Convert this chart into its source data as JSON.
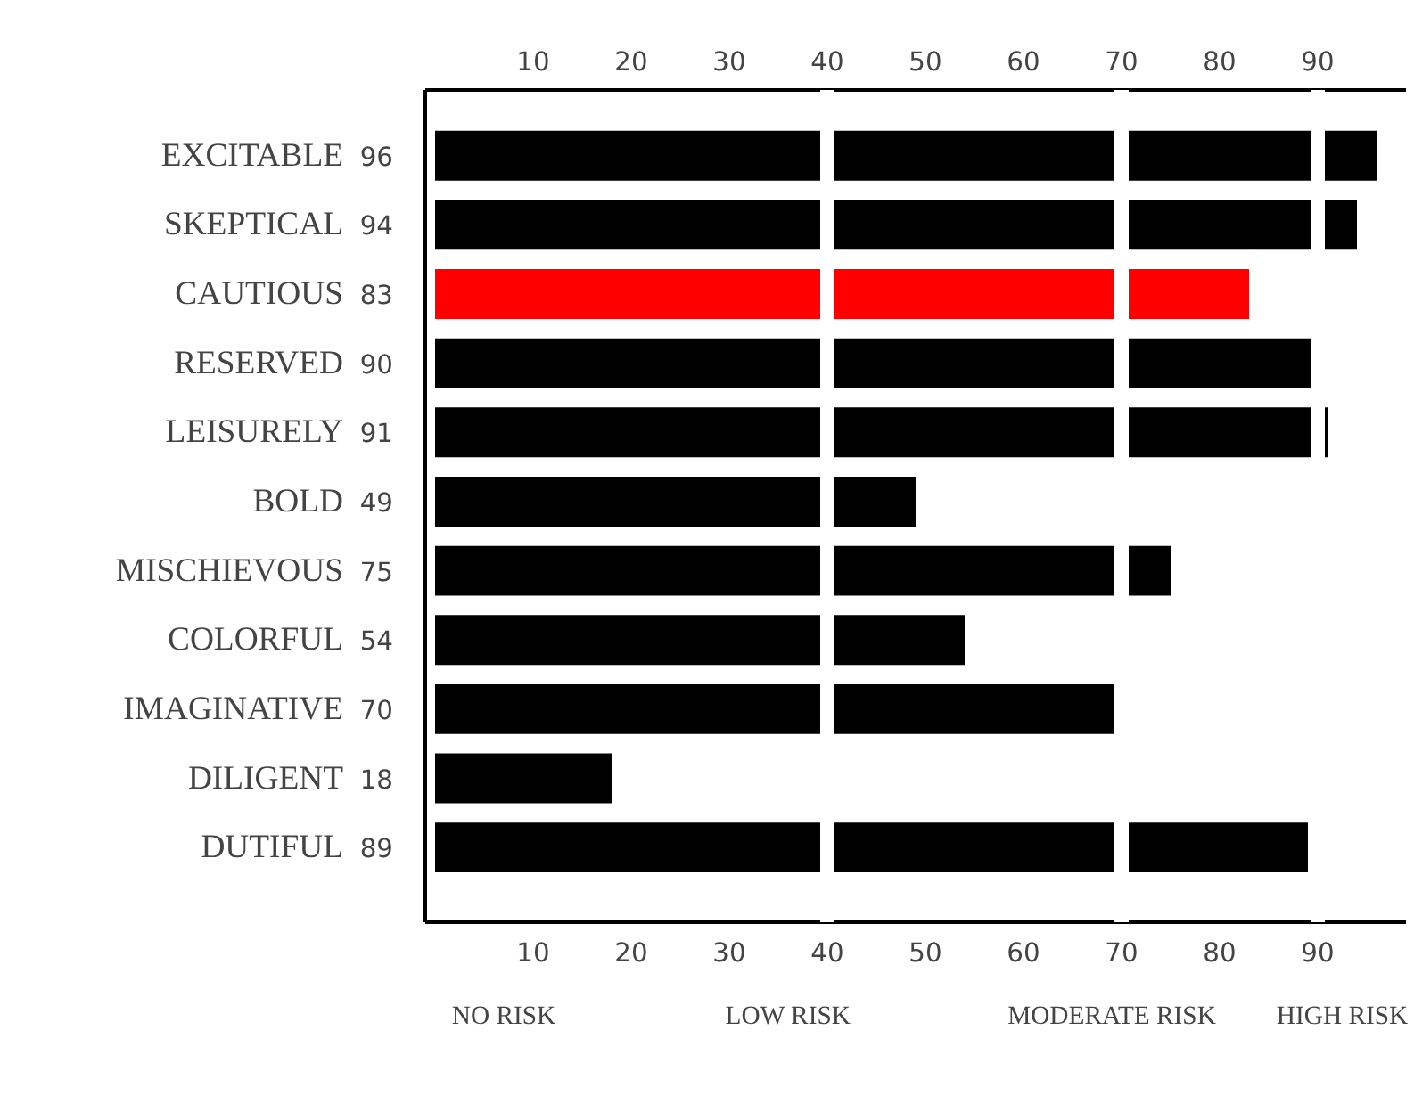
{
  "chart_data": {
    "type": "bar",
    "orientation": "horizontal",
    "categories": [
      "EXCITABLE",
      "SKEPTICAL",
      "CAUTIOUS",
      "RESERVED",
      "LEISURELY",
      "BOLD",
      "MISCHIEVOUS",
      "COLORFUL",
      "IMAGINATIVE",
      "DILIGENT",
      "DUTIFUL"
    ],
    "values": [
      96,
      94,
      83,
      90,
      91,
      49,
      75,
      54,
      70,
      18,
      89
    ],
    "colors": [
      "#000000",
      "#000000",
      "#ff0000",
      "#000000",
      "#000000",
      "#000000",
      "#000000",
      "#000000",
      "#000000",
      "#000000",
      "#000000"
    ],
    "data_labels": true,
    "xlim": [
      -1,
      99
    ],
    "xticks": [
      10,
      20,
      30,
      40,
      50,
      60,
      70,
      80,
      90
    ],
    "x2lim": [
      -1,
      99
    ],
    "x2ticks": [
      10,
      20,
      30,
      40,
      50,
      60,
      70,
      80,
      90
    ],
    "ref_lines": [
      {
        "axis": "x",
        "value": 40,
        "color": "#ffffff"
      },
      {
        "axis": "x",
        "value": 70,
        "color": "#ffffff"
      },
      {
        "axis": "x",
        "value": 90,
        "color": "#ffffff"
      }
    ],
    "annotations": [
      "NO RISK",
      "LOW RISK",
      "MODERATE RISK",
      "HIGH RISK"
    ],
    "grid": false
  }
}
